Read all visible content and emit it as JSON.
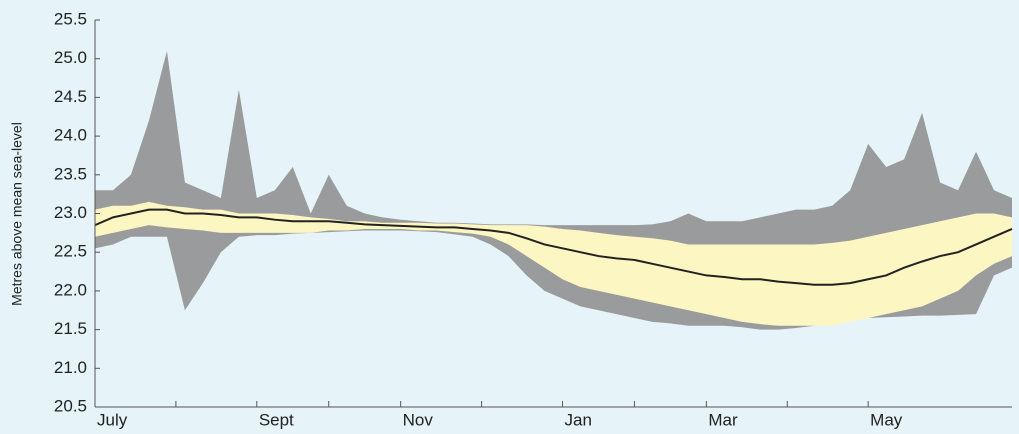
{
  "chart_data": {
    "type": "line",
    "y_label": "Metres above mean sea-level",
    "categories": [
      "July",
      null,
      null,
      null,
      null,
      null,
      null,
      null,
      null,
      "Sept",
      null,
      null,
      null,
      null,
      null,
      null,
      null,
      "Nov",
      null,
      null,
      null,
      null,
      null,
      null,
      null,
      null,
      "Jan",
      null,
      null,
      null,
      null,
      null,
      null,
      null,
      "Mar",
      null,
      null,
      null,
      null,
      null,
      null,
      null,
      null,
      "May",
      null,
      null,
      null,
      null,
      null,
      null,
      null,
      null
    ],
    "ylim": [
      20.5,
      25.5
    ],
    "yticks": [
      {
        "value": 20.5,
        "label": "20.5"
      },
      {
        "value": 21,
        "label": "21.0"
      },
      {
        "value": 21.5,
        "label": "21.5"
      },
      {
        "value": 22,
        "label": "22.0"
      },
      {
        "value": 22.5,
        "label": "22.5"
      },
      {
        "value": 23,
        "label": "23.0"
      },
      {
        "value": 23.5,
        "label": "23.5"
      },
      {
        "value": 24,
        "label": "24.0"
      },
      {
        "value": 24.5,
        "label": "24.5"
      },
      {
        "value": 25,
        "label": "25.0"
      },
      {
        "value": 25.5,
        "label": "25.5"
      }
    ],
    "bands": [
      {
        "color": "#9a9b9d",
        "upper": [
          23.3,
          23.3,
          23.5,
          24.2,
          25.1,
          23.4,
          23.3,
          23.2,
          24.6,
          23.2,
          23.3,
          23.6,
          23.0,
          23.5,
          23.1,
          23.0,
          22.95,
          22.92,
          22.9,
          22.88,
          22.88,
          22.87,
          22.86,
          22.86,
          22.86,
          22.85,
          22.85,
          22.85,
          22.85,
          22.85,
          22.85,
          22.86,
          22.9,
          23.0,
          22.9,
          22.9,
          22.9,
          22.95,
          23.0,
          23.05,
          23.05,
          23.1,
          23.3,
          23.9,
          23.6,
          23.7,
          24.3,
          23.4,
          23.3,
          23.8,
          23.3,
          23.2
        ],
        "lower": [
          22.55,
          22.6,
          22.7,
          22.7,
          22.7,
          21.75,
          22.1,
          22.5,
          22.7,
          22.72,
          22.72,
          22.74,
          22.75,
          22.76,
          22.77,
          22.78,
          22.78,
          22.78,
          22.77,
          22.76,
          22.73,
          22.7,
          22.6,
          22.45,
          22.2,
          22.0,
          21.9,
          21.8,
          21.75,
          21.7,
          21.65,
          21.6,
          21.58,
          21.55,
          21.55,
          21.55,
          21.53,
          21.5,
          21.5,
          21.52,
          21.55,
          21.6,
          21.65,
          21.65,
          21.66,
          21.67,
          21.68,
          21.68,
          21.69,
          21.7,
          22.2,
          22.3
        ]
      },
      {
        "color": "#fbf6c2",
        "upper": [
          23.05,
          23.1,
          23.1,
          23.15,
          23.1,
          23.08,
          23.05,
          23.05,
          23.0,
          23.0,
          23.0,
          22.98,
          22.95,
          22.93,
          22.9,
          22.9,
          22.88,
          22.88,
          22.88,
          22.87,
          22.87,
          22.86,
          22.85,
          22.85,
          22.85,
          22.83,
          22.8,
          22.78,
          22.75,
          22.72,
          22.7,
          22.68,
          22.65,
          22.6,
          22.6,
          22.6,
          22.6,
          22.6,
          22.6,
          22.6,
          22.6,
          22.62,
          22.65,
          22.7,
          22.75,
          22.8,
          22.85,
          22.9,
          22.95,
          23.0,
          23.0,
          22.95
        ],
        "lower": [
          22.7,
          22.75,
          22.8,
          22.85,
          22.82,
          22.8,
          22.78,
          22.75,
          22.75,
          22.75,
          22.75,
          22.75,
          22.75,
          22.78,
          22.78,
          22.8,
          22.8,
          22.8,
          22.78,
          22.78,
          22.76,
          22.74,
          22.7,
          22.6,
          22.45,
          22.3,
          22.15,
          22.05,
          22.0,
          21.95,
          21.9,
          21.85,
          21.8,
          21.75,
          21.7,
          21.65,
          21.6,
          21.57,
          21.55,
          21.55,
          21.55,
          21.55,
          21.6,
          21.65,
          21.7,
          21.75,
          21.8,
          21.9,
          22.0,
          22.2,
          22.35,
          22.45
        ]
      }
    ],
    "series": [
      {
        "color": "#222222",
        "values": [
          22.85,
          22.95,
          23.0,
          23.05,
          23.05,
          23.0,
          23.0,
          22.98,
          22.95,
          22.95,
          22.92,
          22.9,
          22.9,
          22.9,
          22.88,
          22.86,
          22.85,
          22.84,
          22.83,
          22.82,
          22.82,
          22.8,
          22.78,
          22.75,
          22.68,
          22.6,
          22.55,
          22.5,
          22.45,
          22.42,
          22.4,
          22.35,
          22.3,
          22.25,
          22.2,
          22.18,
          22.15,
          22.15,
          22.12,
          22.1,
          22.08,
          22.08,
          22.1,
          22.15,
          22.2,
          22.3,
          22.38,
          22.45,
          22.5,
          22.6,
          22.7,
          22.8
        ]
      }
    ]
  }
}
